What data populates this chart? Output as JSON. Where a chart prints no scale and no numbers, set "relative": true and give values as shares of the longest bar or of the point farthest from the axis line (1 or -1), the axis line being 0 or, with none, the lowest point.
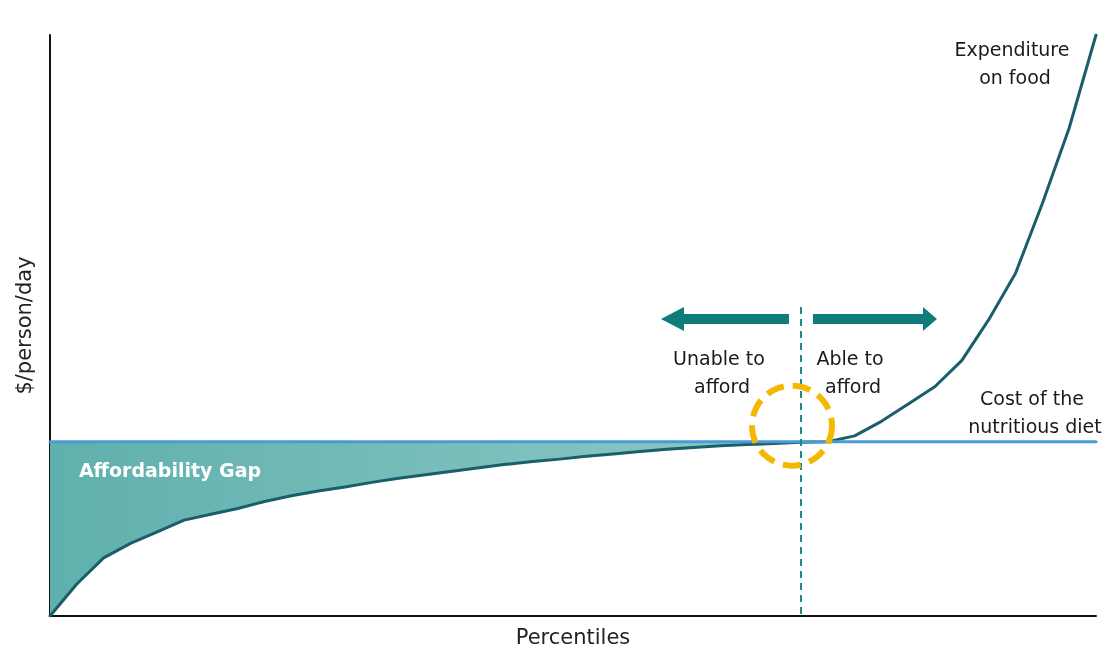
{
  "chart_data": {
    "type": "line",
    "relative": true,
    "xlabel": "Percentiles",
    "ylabel": "$/person/day",
    "tick_labels": false,
    "grid": false,
    "marker": "none",
    "categories": [
      null,
      null,
      null,
      null,
      null,
      null,
      null,
      null,
      null,
      null,
      null,
      null,
      null,
      null,
      null,
      null,
      null,
      null,
      null,
      null,
      null,
      null,
      null,
      null,
      null,
      null,
      null,
      null,
      null,
      null,
      null,
      null,
      null,
      null,
      null,
      null,
      null,
      null,
      null,
      null
    ],
    "series": [
      {
        "color": "#1b5e6b",
        "values": [
          0,
          0.055,
          0.1,
          0.125,
          0.145,
          0.165,
          0.175,
          0.185,
          0.197,
          0.207,
          0.215,
          0.222,
          0.23,
          0.237,
          0.243,
          0.249,
          0.255,
          0.261,
          0.266,
          0.27,
          0.275,
          0.279,
          0.283,
          0.287,
          0.29,
          0.293,
          0.295,
          0.297,
          0.299,
          0.3,
          0.31,
          0.335,
          0.365,
          0.395,
          0.44,
          0.51,
          0.59,
          0.71,
          0.84,
          1
        ],
        "lower": [
          0,
          0.055,
          0.1,
          0.125,
          0.145,
          0.165,
          0.175,
          0.185,
          0.197,
          0.207,
          0.215,
          0.222,
          0.23,
          0.237,
          0.243,
          0.249,
          0.255,
          0.261,
          0.266,
          0.27,
          0.275,
          0.279,
          0.283,
          0.287,
          0.29,
          0.293,
          0.295,
          0.297,
          0.299,
          null,
          null,
          null,
          null,
          null,
          null,
          null,
          null,
          null,
          null,
          null
        ],
        "upper": [
          0.3,
          0.3,
          0.3,
          0.3,
          0.3,
          0.3,
          0.3,
          0.3,
          0.3,
          0.3,
          0.3,
          0.3,
          0.3,
          0.3,
          0.3,
          0.3,
          0.3,
          0.3,
          0.3,
          0.3,
          0.3,
          0.3,
          0.3,
          0.3,
          0.3,
          0.3,
          0.3,
          0.3,
          0.3,
          null,
          null,
          null,
          null,
          null,
          null,
          null,
          null,
          null,
          null,
          null
        ]
      },
      {
        "color": "#4a9ad6",
        "values": [
          0.3,
          0.3,
          0.3,
          0.3,
          0.3,
          0.3,
          0.3,
          0.3,
          0.3,
          0.3,
          0.3,
          0.3,
          0.3,
          0.3,
          0.3,
          0.3,
          0.3,
          0.3,
          0.3,
          0.3,
          0.3,
          0.3,
          0.3,
          0.3,
          0.3,
          0.3,
          0.3,
          0.3,
          0.3,
          0.3,
          0.3,
          0.3,
          0.3,
          0.3,
          0.3,
          0.3,
          0.3,
          0.3,
          0.3,
          0.3
        ]
      }
    ],
    "annotations": [
      "Expenditure on food",
      "Cost of the nutritious diet",
      "Affordability Gap",
      "Unable to afford",
      "Able to afford"
    ]
  }
}
